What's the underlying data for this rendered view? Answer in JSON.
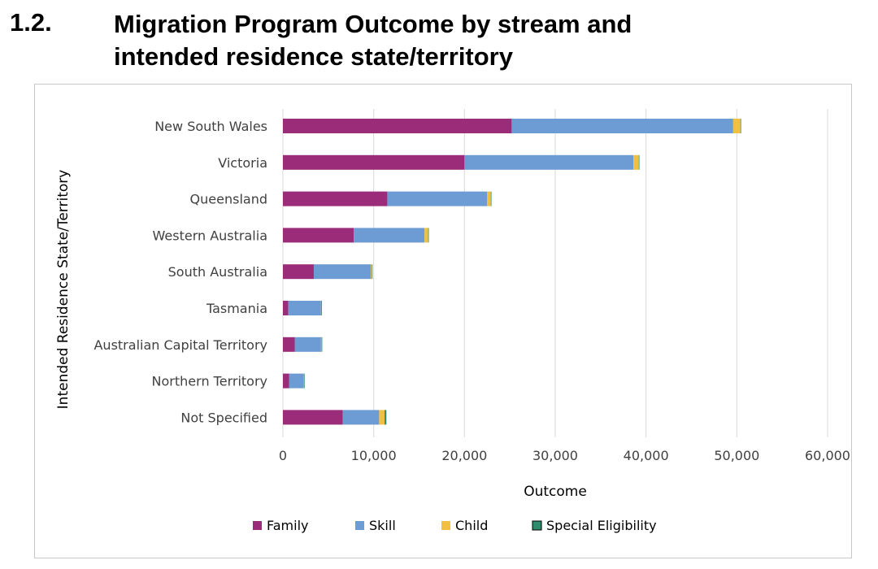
{
  "heading": {
    "number": "1.2.",
    "title_line1": "Migration Program Outcome by stream and",
    "title_line2": "intended residence state/territory"
  },
  "colors": {
    "family": "#9b2c7a",
    "skill": "#6d9bd3",
    "child": "#f2c040",
    "special": "#2e8b6e",
    "grid": "#d9d9d9"
  },
  "chart_data": {
    "type": "bar",
    "orientation": "horizontal",
    "stacked": true,
    "title": "",
    "xlabel": "Outcome",
    "ylabel": "Intended Residence State/Territory",
    "xlim": [
      0,
      60000
    ],
    "xticks": [
      0,
      10000,
      20000,
      30000,
      40000,
      50000,
      60000
    ],
    "xtick_labels": [
      "0",
      "10,000",
      "20,000",
      "30,000",
      "40,000",
      "50,000",
      "60,000"
    ],
    "grid": true,
    "legend_position": "bottom",
    "categories": [
      "New South Wales",
      "Victoria",
      "Queensland",
      "Western Australia",
      "South Australia",
      "Tasmania",
      "Australian Capital Territory",
      "Northern Territory",
      "Not Specified"
    ],
    "series": [
      {
        "name": "Family",
        "color_key": "family",
        "values": [
          25200,
          20000,
          11500,
          7800,
          3400,
          600,
          1300,
          700,
          6600
        ]
      },
      {
        "name": "Skill",
        "color_key": "skill",
        "values": [
          24400,
          18600,
          11000,
          7800,
          6300,
          3600,
          2900,
          1600,
          4000
        ]
      },
      {
        "name": "Child",
        "color_key": "child",
        "values": [
          800,
          600,
          400,
          400,
          100,
          30,
          60,
          20,
          600
        ]
      },
      {
        "name": "Special Eligibility",
        "color_key": "special",
        "values": [
          20,
          20,
          10,
          10,
          10,
          5,
          5,
          5,
          200
        ]
      }
    ]
  }
}
